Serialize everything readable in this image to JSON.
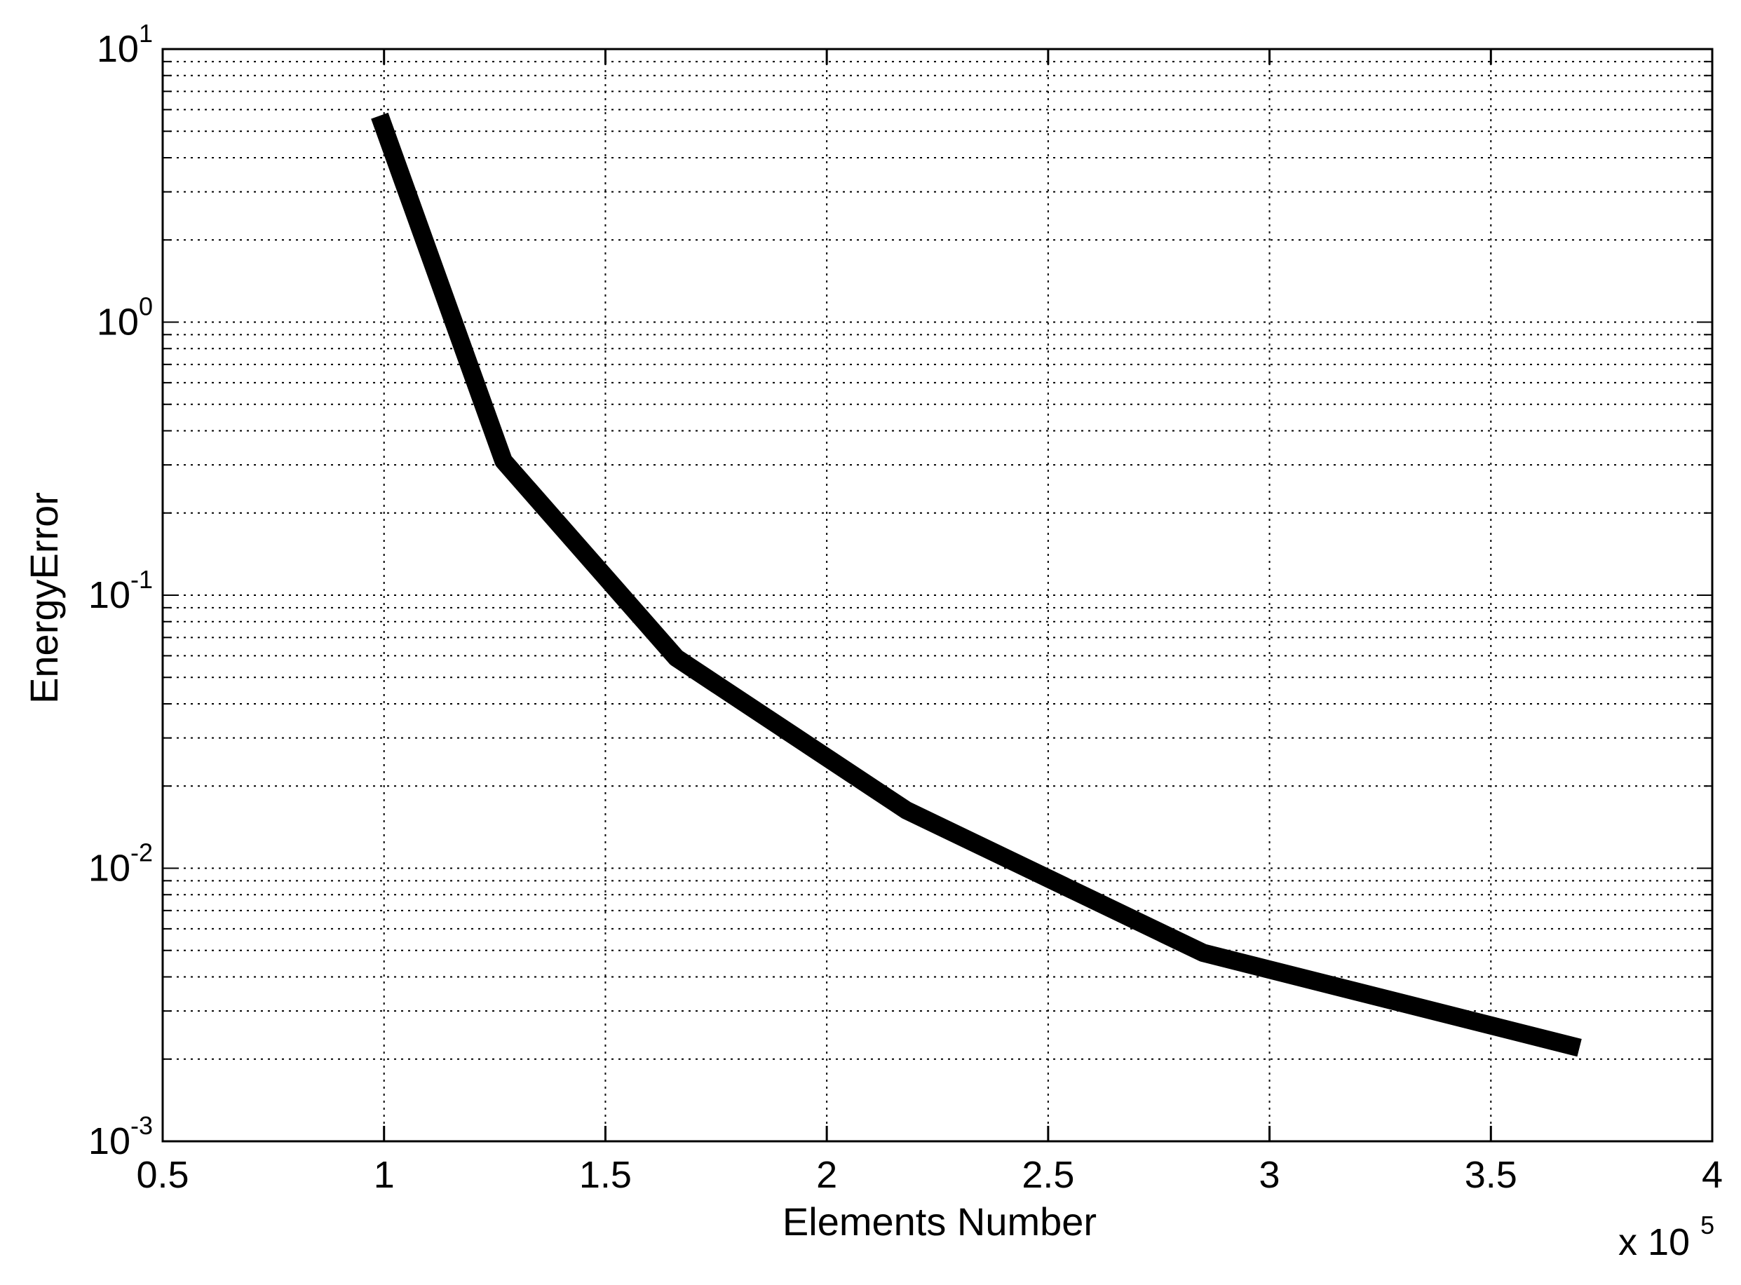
{
  "chart_data": {
    "type": "line",
    "title": "",
    "xlabel": "Elements Number",
    "ylabel": "EnergyError",
    "x_multiplier_label": "x 10",
    "x_multiplier_exponent": "5",
    "xscale": "linear",
    "yscale": "log",
    "xlim": [
      50000,
      400000
    ],
    "ylim": [
      0.001,
      10
    ],
    "grid": true,
    "line_color": "#000000",
    "x_ticks": [
      {
        "value": 50000,
        "label": "0.5"
      },
      {
        "value": 100000,
        "label": "1"
      },
      {
        "value": 150000,
        "label": "1.5"
      },
      {
        "value": 200000,
        "label": "2"
      },
      {
        "value": 250000,
        "label": "2.5"
      },
      {
        "value": 300000,
        "label": "3"
      },
      {
        "value": 350000,
        "label": "3.5"
      },
      {
        "value": 400000,
        "label": "4"
      }
    ],
    "y_ticks": [
      {
        "value": 0.001,
        "base": "10",
        "exp": "-3"
      },
      {
        "value": 0.01,
        "base": "10",
        "exp": "-2"
      },
      {
        "value": 0.1,
        "base": "10",
        "exp": "-1"
      },
      {
        "value": 1,
        "base": "10",
        "exp": "0"
      },
      {
        "value": 10,
        "base": "10",
        "exp": "1"
      }
    ],
    "series": [
      {
        "x": [
          99000,
          127000,
          166000,
          218000,
          285000,
          370000
        ],
        "y": [
          5.7,
          0.31,
          0.059,
          0.0163,
          0.0049,
          0.0022
        ]
      }
    ]
  }
}
